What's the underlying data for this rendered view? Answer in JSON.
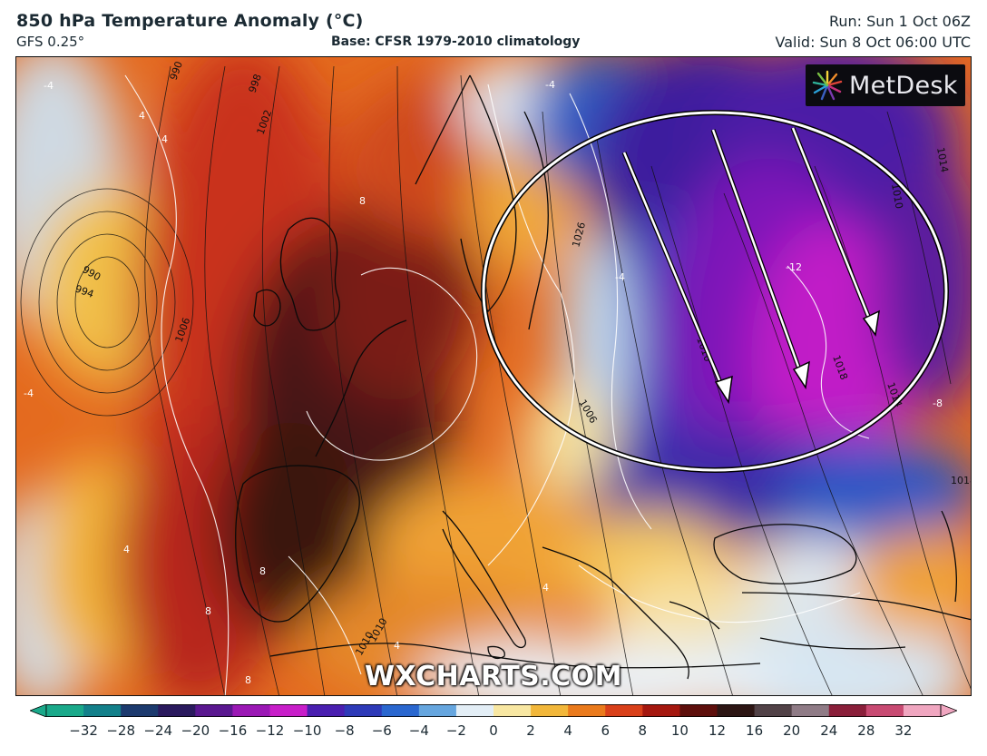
{
  "header": {
    "title": "850 hPa Temperature Anomaly (°C)",
    "model": "GFS 0.25°",
    "base": "Base: CFSR 1979-2010 climatology",
    "run": "Run: Sun 1 Oct 06Z",
    "valid": "Valid: Sun 8 Oct 06:00 UTC"
  },
  "branding": {
    "logo_text": "MetDesk",
    "watermark": "WXCHARTS.COM"
  },
  "map": {
    "isobar_labels": [
      "990",
      "998",
      "1002",
      "990",
      "994",
      "1006",
      "1026",
      "1010",
      "1018",
      "1014",
      "1010",
      "1014",
      "1018",
      "1006",
      "1010",
      "1010"
    ],
    "anomaly_labels": [
      "-4",
      "4",
      "4",
      "-4",
      "8",
      "-4",
      "-12",
      "-8",
      "8",
      "4",
      "4",
      "8",
      "8",
      "-4",
      "4"
    ],
    "annotation": "circle with three arrows over Eastern Europe / western Russia"
  },
  "colorbar": {
    "ticks": [
      "−32",
      "−28",
      "−24",
      "−20",
      "−16",
      "−12",
      "−10",
      "−8",
      "−6",
      "−4",
      "−2",
      "0",
      "2",
      "4",
      "6",
      "8",
      "10",
      "12",
      "16",
      "20",
      "24",
      "28",
      "32"
    ],
    "colors": [
      "#1aa98a",
      "#13808a",
      "#1c3a6e",
      "#2a1a5e",
      "#5a1790",
      "#9b18b5",
      "#c81ec9",
      "#4a1fb0",
      "#2e3ab8",
      "#2a67cf",
      "#66a6df",
      "#e3eef6",
      "#f8e7a2",
      "#f2b73a",
      "#ea7a1c",
      "#d9401a",
      "#a5170f",
      "#5e0f0c",
      "#2d1614",
      "#524247",
      "#8f7b86",
      "#8a1f3a",
      "#c84a72",
      "#f0a6c0"
    ]
  }
}
